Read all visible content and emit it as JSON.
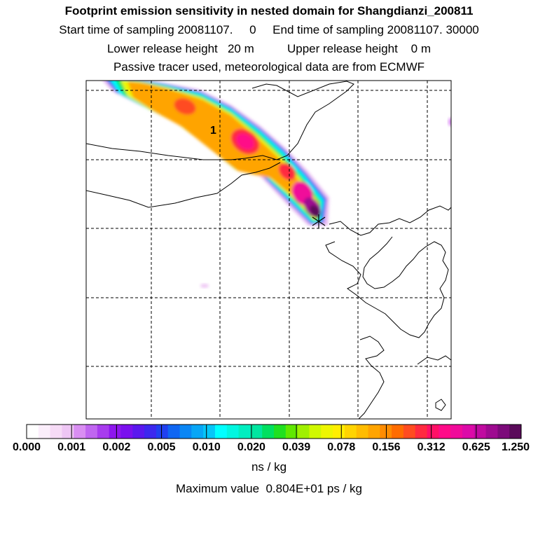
{
  "title": "Footprint emission sensitivity in nested domain for Shangdianzi_200811",
  "line2": "Start time of sampling 20081107.     0     End time of sampling 20081107. 30000",
  "line3": "Lower release height   20 m          Upper release height    0 m",
  "line4": "Passive tracer used, meteorological data are from ECMWF",
  "contour_label": "1",
  "colorbar": {
    "tick_labels": [
      "0.000",
      "0.001",
      "0.002",
      "0.005",
      "0.010",
      "0.020",
      "0.039",
      "0.078",
      "0.156",
      "0.312",
      "0.625",
      "1.250"
    ],
    "unit": "ns / kg",
    "colors": [
      "#ffffff",
      "#fbeefb",
      "#f6dbf6",
      "#eec6f4",
      "#d98ef2",
      "#c066f0",
      "#a83cee",
      "#8e16ee",
      "#7a10ee",
      "#5a18ee",
      "#3c28ee",
      "#2040f0",
      "#1066f2",
      "#0a86f4",
      "#08a6f6",
      "#06c6f8",
      "#00ffff",
      "#00f6e0",
      "#00eec0",
      "#00e6a0",
      "#00e060",
      "#20e020",
      "#60e800",
      "#a0f000",
      "#d0f800",
      "#eef600",
      "#ffee00",
      "#ffd400",
      "#ffbc00",
      "#ffa400",
      "#ff8c00",
      "#ff6c00",
      "#ff4c20",
      "#ff2a40",
      "#ff1066",
      "#ff0a88",
      "#f00a9a",
      "#dc0aa8",
      "#c00aa0",
      "#9e0a90",
      "#7c0a7a",
      "#5a0a5a"
    ]
  },
  "max_value": "Maximum value  0.804E+01 ps / kg",
  "chart_data": {
    "type": "heatmap",
    "title": "Footprint emission sensitivity in nested domain for Shangdianzi_200811",
    "colorbar_levels": [
      0.0,
      0.001,
      0.002,
      0.005,
      0.01,
      0.02,
      0.039,
      0.078,
      0.156,
      0.312,
      0.625,
      1.25
    ],
    "unit": "ns / kg",
    "maximum_value": "0.804E+01 ps / kg",
    "contour_labels": [
      "1"
    ],
    "grid": true
  }
}
